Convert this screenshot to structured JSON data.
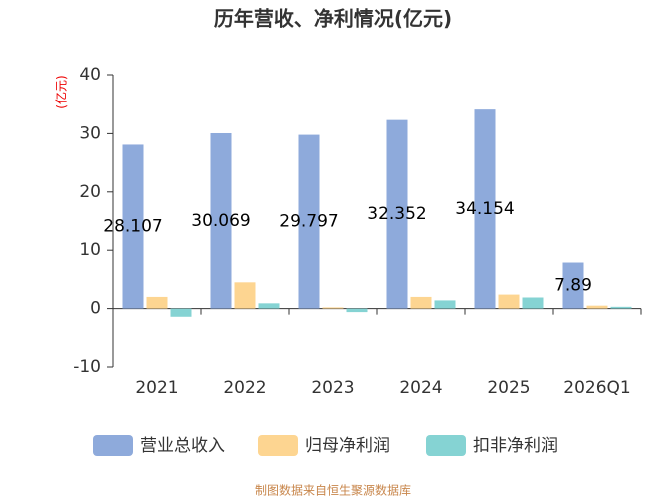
{
  "chart_data": {
    "type": "bar",
    "title": "历年营收、净利情况(亿元)",
    "y_label": "(亿元)",
    "categories": [
      "2021",
      "2022",
      "2023",
      "2024",
      "2025",
      "2026Q1"
    ],
    "series": [
      {
        "name": "营业总收入",
        "color": "#8eaadb",
        "values": [
          28.107,
          30.069,
          29.797,
          32.352,
          34.154,
          7.89
        ],
        "show_labels": true
      },
      {
        "name": "归母净利润",
        "color": "#fdd591",
        "values": [
          2.0,
          4.5,
          0.2,
          2.0,
          2.4,
          0.5
        ],
        "show_labels": false
      },
      {
        "name": "扣非净利润",
        "color": "#85d3d3",
        "values": [
          -1.4,
          0.9,
          -0.6,
          1.4,
          1.9,
          0.3
        ],
        "show_labels": false
      }
    ],
    "ylim": [
      -10,
      40
    ],
    "yticks": [
      -10,
      0,
      10,
      20,
      30,
      40
    ],
    "grid": false,
    "source": "制图数据来自恒生聚源数据库"
  }
}
